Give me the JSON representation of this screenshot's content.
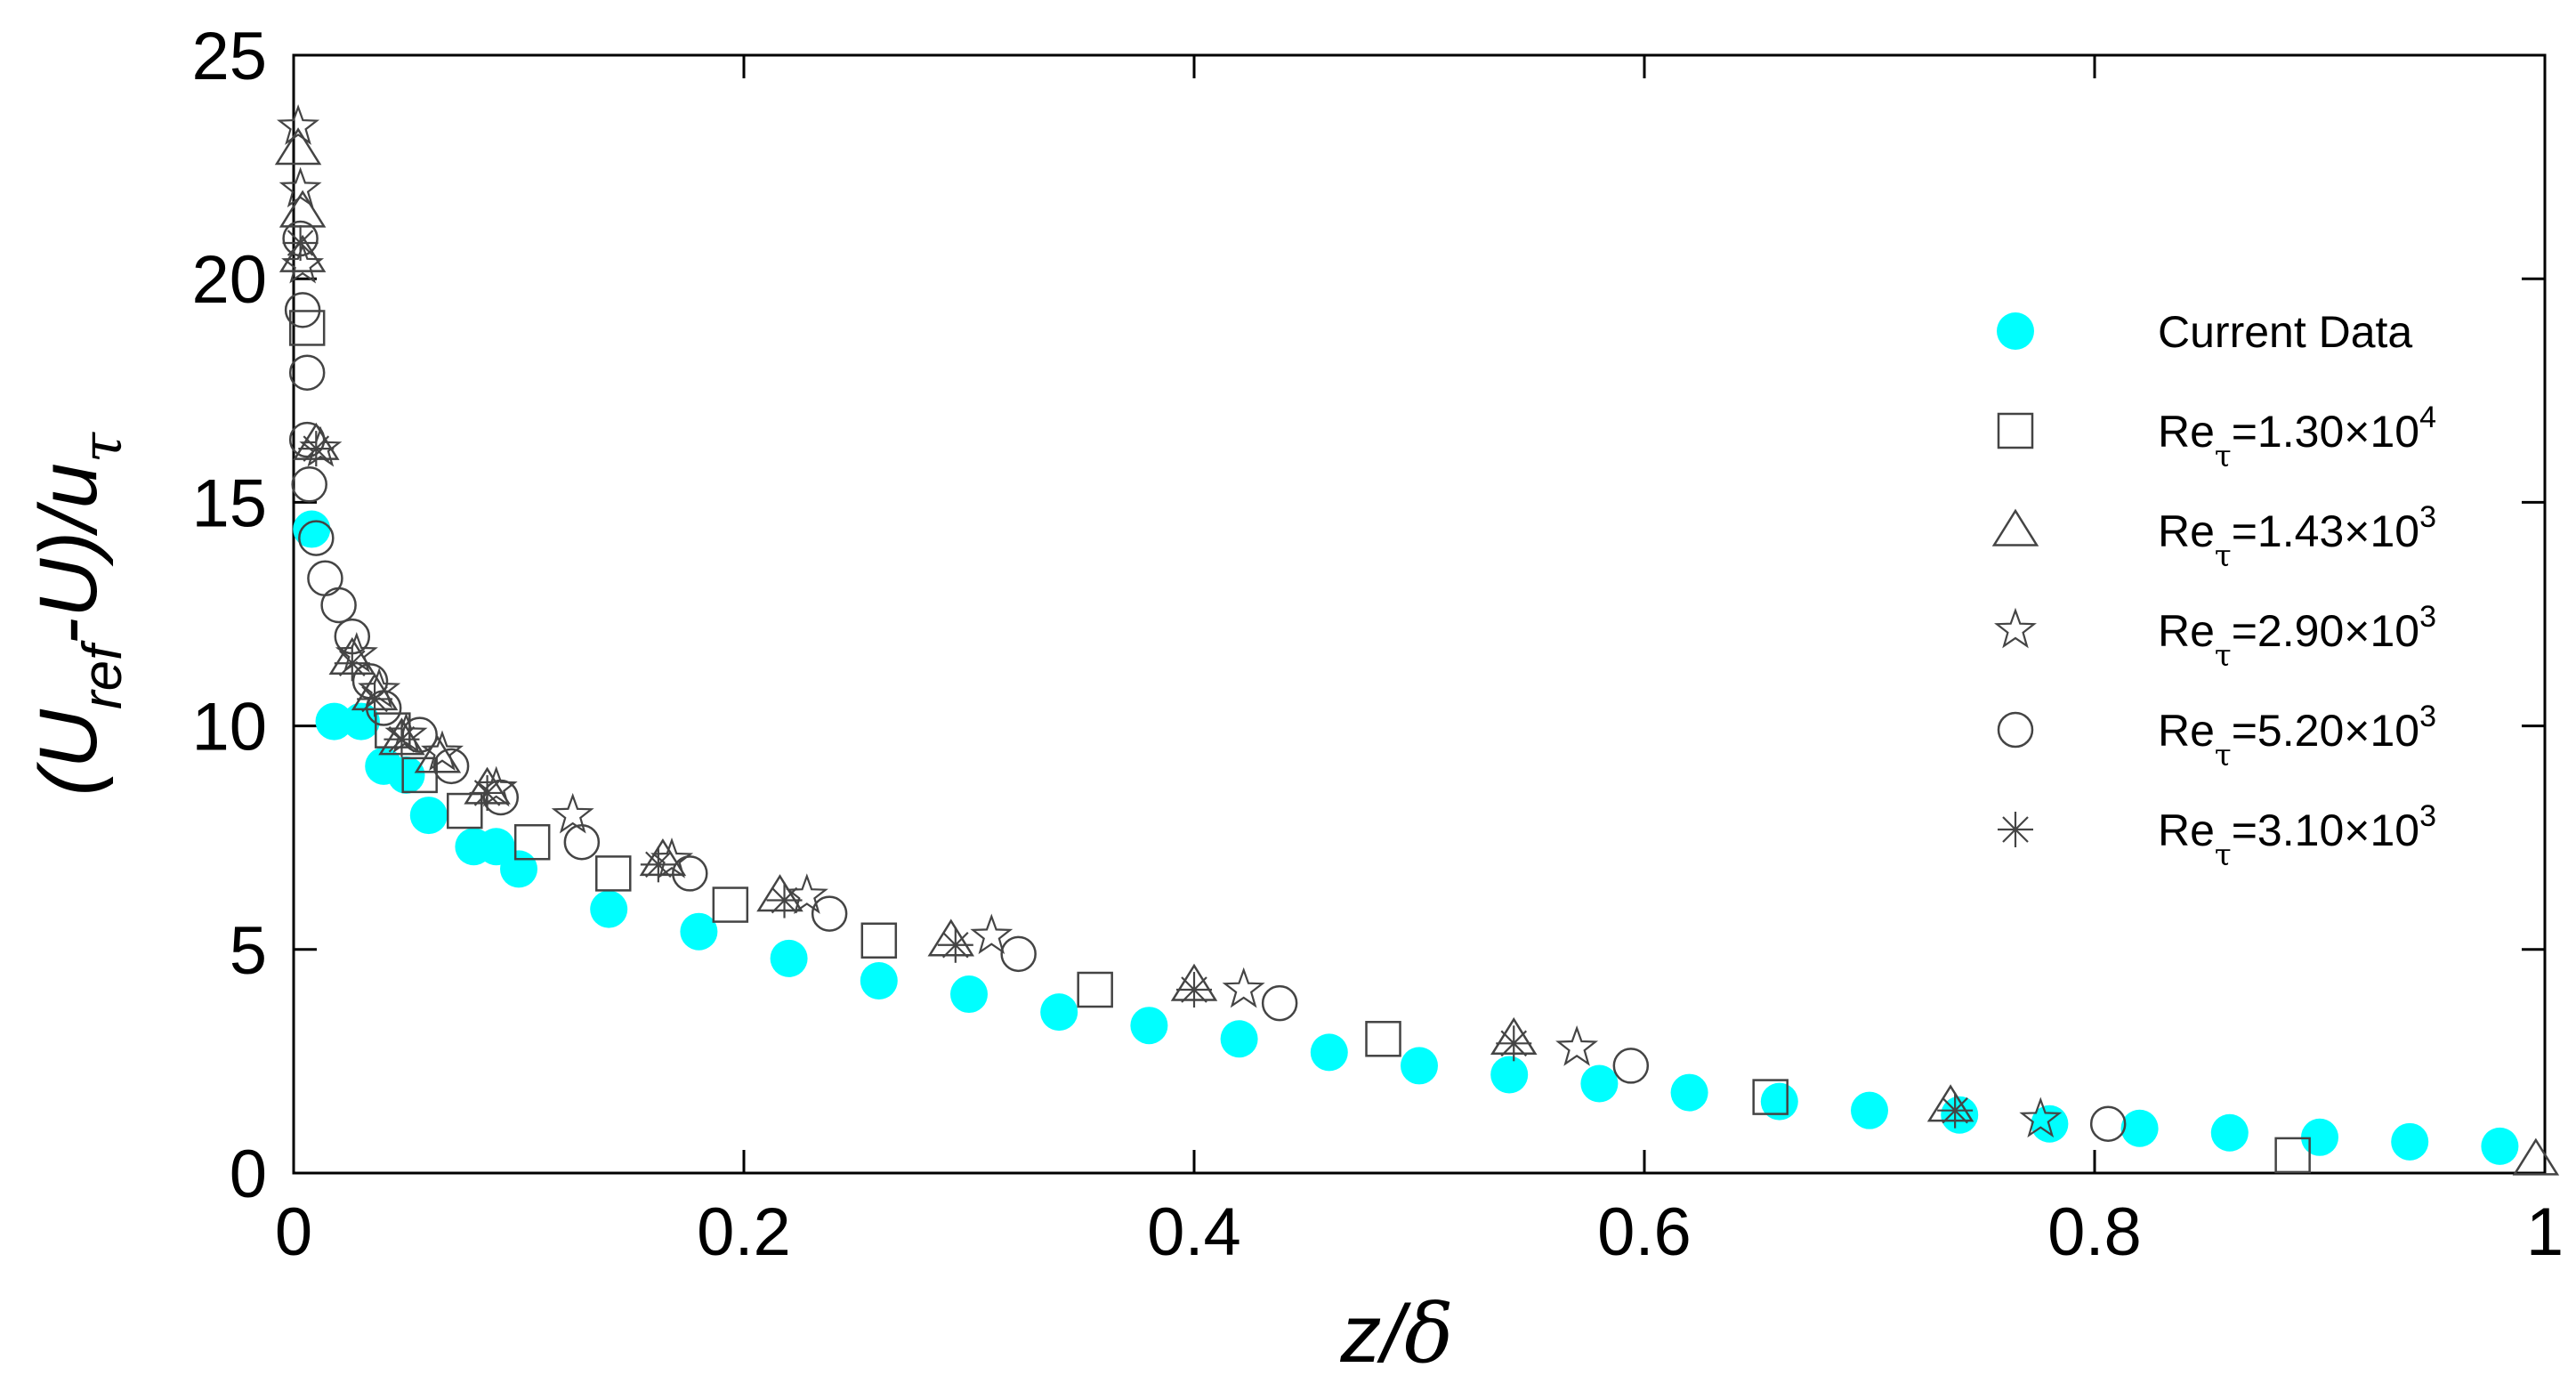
{
  "chart_data": {
    "type": "scatter",
    "title": "",
    "xlabel": {
      "main": "z/",
      "greek": "δ"
    },
    "ylabel": {
      "a": "(U",
      "a_sub": "ref",
      "b": "-U)/u",
      "b_sub": "τ"
    },
    "xlim": [
      0,
      1
    ],
    "ylim": [
      0,
      25
    ],
    "x_ticks": [
      "0",
      "0.2",
      "0.4",
      "0.6",
      "0.8",
      "1"
    ],
    "y_ticks": [
      "0",
      "5",
      "10",
      "15",
      "20",
      "25"
    ],
    "x_tick_values": [
      0,
      0.2,
      0.4,
      0.6,
      0.8,
      1
    ],
    "y_tick_values": [
      0,
      5,
      10,
      15,
      20,
      25
    ],
    "grid": false,
    "legend_position": "right",
    "series": [
      {
        "name": "Current Data",
        "marker": "filled-circle",
        "color": "#00FFFF",
        "points": [
          [
            0.008,
            14.4
          ],
          [
            0.018,
            10.1
          ],
          [
            0.03,
            10.1
          ],
          [
            0.04,
            9.1
          ],
          [
            0.05,
            8.9
          ],
          [
            0.06,
            8.0
          ],
          [
            0.08,
            7.3
          ],
          [
            0.09,
            7.3
          ],
          [
            0.1,
            6.8
          ],
          [
            0.14,
            5.9
          ],
          [
            0.18,
            5.4
          ],
          [
            0.22,
            4.8
          ],
          [
            0.26,
            4.3
          ],
          [
            0.3,
            4.0
          ],
          [
            0.34,
            3.6
          ],
          [
            0.38,
            3.3
          ],
          [
            0.42,
            3.0
          ],
          [
            0.46,
            2.7
          ],
          [
            0.5,
            2.4
          ],
          [
            0.54,
            2.2
          ],
          [
            0.58,
            2.0
          ],
          [
            0.62,
            1.8
          ],
          [
            0.66,
            1.6
          ],
          [
            0.7,
            1.4
          ],
          [
            0.74,
            1.3
          ],
          [
            0.78,
            1.1
          ],
          [
            0.82,
            1.0
          ],
          [
            0.86,
            0.9
          ],
          [
            0.9,
            0.8
          ],
          [
            0.94,
            0.7
          ],
          [
            0.98,
            0.6
          ]
        ]
      },
      {
        "name": "Re",
        "name_sub": "τ",
        "name_value": "=1.30×10",
        "name_exp": "4",
        "marker": "square",
        "color": "#444444",
        "points": [
          [
            0.006,
            18.9
          ],
          [
            0.044,
            9.9
          ],
          [
            0.056,
            8.9
          ],
          [
            0.076,
            8.1
          ],
          [
            0.106,
            7.4
          ],
          [
            0.142,
            6.7
          ],
          [
            0.194,
            6.0
          ],
          [
            0.26,
            5.2
          ],
          [
            0.356,
            4.1
          ],
          [
            0.484,
            3.0
          ],
          [
            0.656,
            1.7
          ],
          [
            0.888,
            0.4
          ]
        ]
      },
      {
        "name": "Re",
        "name_sub": "τ",
        "name_value": "=1.43×10",
        "name_exp": "3",
        "marker": "triangle",
        "color": "#444444",
        "points": [
          [
            0.002,
            22.9
          ],
          [
            0.004,
            21.5
          ],
          [
            0.004,
            20.5
          ],
          [
            0.01,
            16.3
          ],
          [
            0.026,
            11.5
          ],
          [
            0.036,
            10.7
          ],
          [
            0.048,
            9.7
          ],
          [
            0.064,
            9.3
          ],
          [
            0.086,
            8.6
          ],
          [
            0.164,
            7.0
          ],
          [
            0.216,
            6.2
          ],
          [
            0.292,
            5.2
          ],
          [
            0.4,
            4.2
          ],
          [
            0.542,
            3.0
          ],
          [
            0.736,
            1.5
          ],
          [
            0.996,
            0.3
          ]
        ]
      },
      {
        "name": "Re",
        "name_sub": "τ",
        "name_value": "=2.90×10",
        "name_exp": "3",
        "marker": "star",
        "color": "#444444",
        "points": [
          [
            0.002,
            23.4
          ],
          [
            0.003,
            22.0
          ],
          [
            0.004,
            20.3
          ],
          [
            0.012,
            16.2
          ],
          [
            0.028,
            11.6
          ],
          [
            0.038,
            10.8
          ],
          [
            0.05,
            9.8
          ],
          [
            0.066,
            9.4
          ],
          [
            0.09,
            8.6
          ],
          [
            0.124,
            8.0
          ],
          [
            0.168,
            7.0
          ],
          [
            0.228,
            6.2
          ],
          [
            0.31,
            5.3
          ],
          [
            0.422,
            4.1
          ],
          [
            0.57,
            2.8
          ],
          [
            0.776,
            1.2
          ]
        ]
      },
      {
        "name": "Re",
        "name_sub": "τ",
        "name_value": "=5.20×10",
        "name_exp": "3",
        "marker": "circle",
        "color": "#444444",
        "points": [
          [
            0.003,
            20.9
          ],
          [
            0.004,
            19.3
          ],
          [
            0.006,
            17.9
          ],
          [
            0.006,
            16.4
          ],
          [
            0.007,
            15.4
          ],
          [
            0.01,
            14.2
          ],
          [
            0.014,
            13.3
          ],
          [
            0.02,
            12.7
          ],
          [
            0.026,
            12.0
          ],
          [
            0.034,
            11.0
          ],
          [
            0.04,
            10.4
          ],
          [
            0.056,
            9.8
          ],
          [
            0.07,
            9.1
          ],
          [
            0.092,
            8.4
          ],
          [
            0.128,
            7.4
          ],
          [
            0.176,
            6.7
          ],
          [
            0.238,
            5.8
          ],
          [
            0.322,
            4.9
          ],
          [
            0.438,
            3.8
          ],
          [
            0.594,
            2.4
          ],
          [
            0.806,
            1.1
          ]
        ]
      },
      {
        "name": "Re",
        "name_sub": "τ",
        "name_value": "=3.10×10",
        "name_exp": "3",
        "marker": "asterisk",
        "color": "#444444",
        "points": [
          [
            0.003,
            20.8
          ],
          [
            0.01,
            16.2
          ],
          [
            0.026,
            11.4
          ],
          [
            0.036,
            10.6
          ],
          [
            0.048,
            9.7
          ],
          [
            0.086,
            8.5
          ],
          [
            0.162,
            6.9
          ],
          [
            0.218,
            6.1
          ],
          [
            0.294,
            5.1
          ],
          [
            0.4,
            4.1
          ],
          [
            0.542,
            2.9
          ],
          [
            0.738,
            1.4
          ]
        ]
      }
    ]
  }
}
